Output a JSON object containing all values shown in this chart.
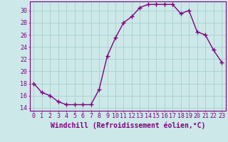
{
  "x": [
    0,
    1,
    2,
    3,
    4,
    5,
    6,
    7,
    8,
    9,
    10,
    11,
    12,
    13,
    14,
    15,
    16,
    17,
    18,
    19,
    20,
    21,
    22,
    23
  ],
  "y": [
    18,
    16.5,
    16,
    15,
    14.5,
    14.5,
    14.5,
    14.5,
    17,
    22.5,
    25.5,
    28,
    29,
    30.5,
    31,
    31,
    31,
    31,
    29.5,
    30,
    26.5,
    26,
    23.5,
    21.5
  ],
  "line_color": "#800080",
  "marker": "+",
  "marker_size": 4,
  "background_color": "#cce8e8",
  "grid_color": "#aad0d0",
  "xlabel": "Windchill (Refroidissement éolien,°C)",
  "xlabel_fontsize": 7,
  "xlim_min": -0.5,
  "xlim_max": 23.5,
  "ylim_min": 13.5,
  "ylim_max": 31.5,
  "yticks": [
    14,
    16,
    18,
    20,
    22,
    24,
    26,
    28,
    30
  ],
  "xticks": [
    0,
    1,
    2,
    3,
    4,
    5,
    6,
    7,
    8,
    9,
    10,
    11,
    12,
    13,
    14,
    15,
    16,
    17,
    18,
    19,
    20,
    21,
    22,
    23
  ],
  "tick_fontsize": 6,
  "line_width": 1.0
}
